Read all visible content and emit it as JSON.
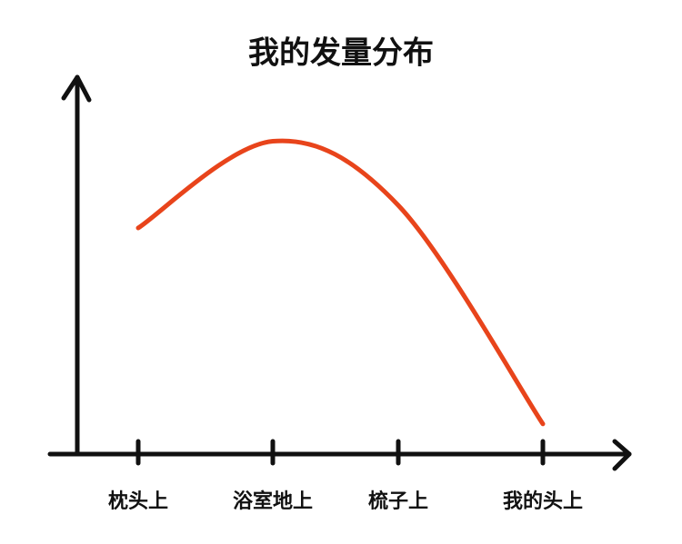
{
  "chart_data": {
    "type": "line",
    "title": "我的发量分布",
    "categories": [
      "枕头上",
      "浴室地上",
      "梳子上",
      "我的头上"
    ],
    "values": [
      60,
      83,
      66,
      8
    ],
    "color": "#e8441b",
    "ylim": [
      0,
      100
    ]
  }
}
